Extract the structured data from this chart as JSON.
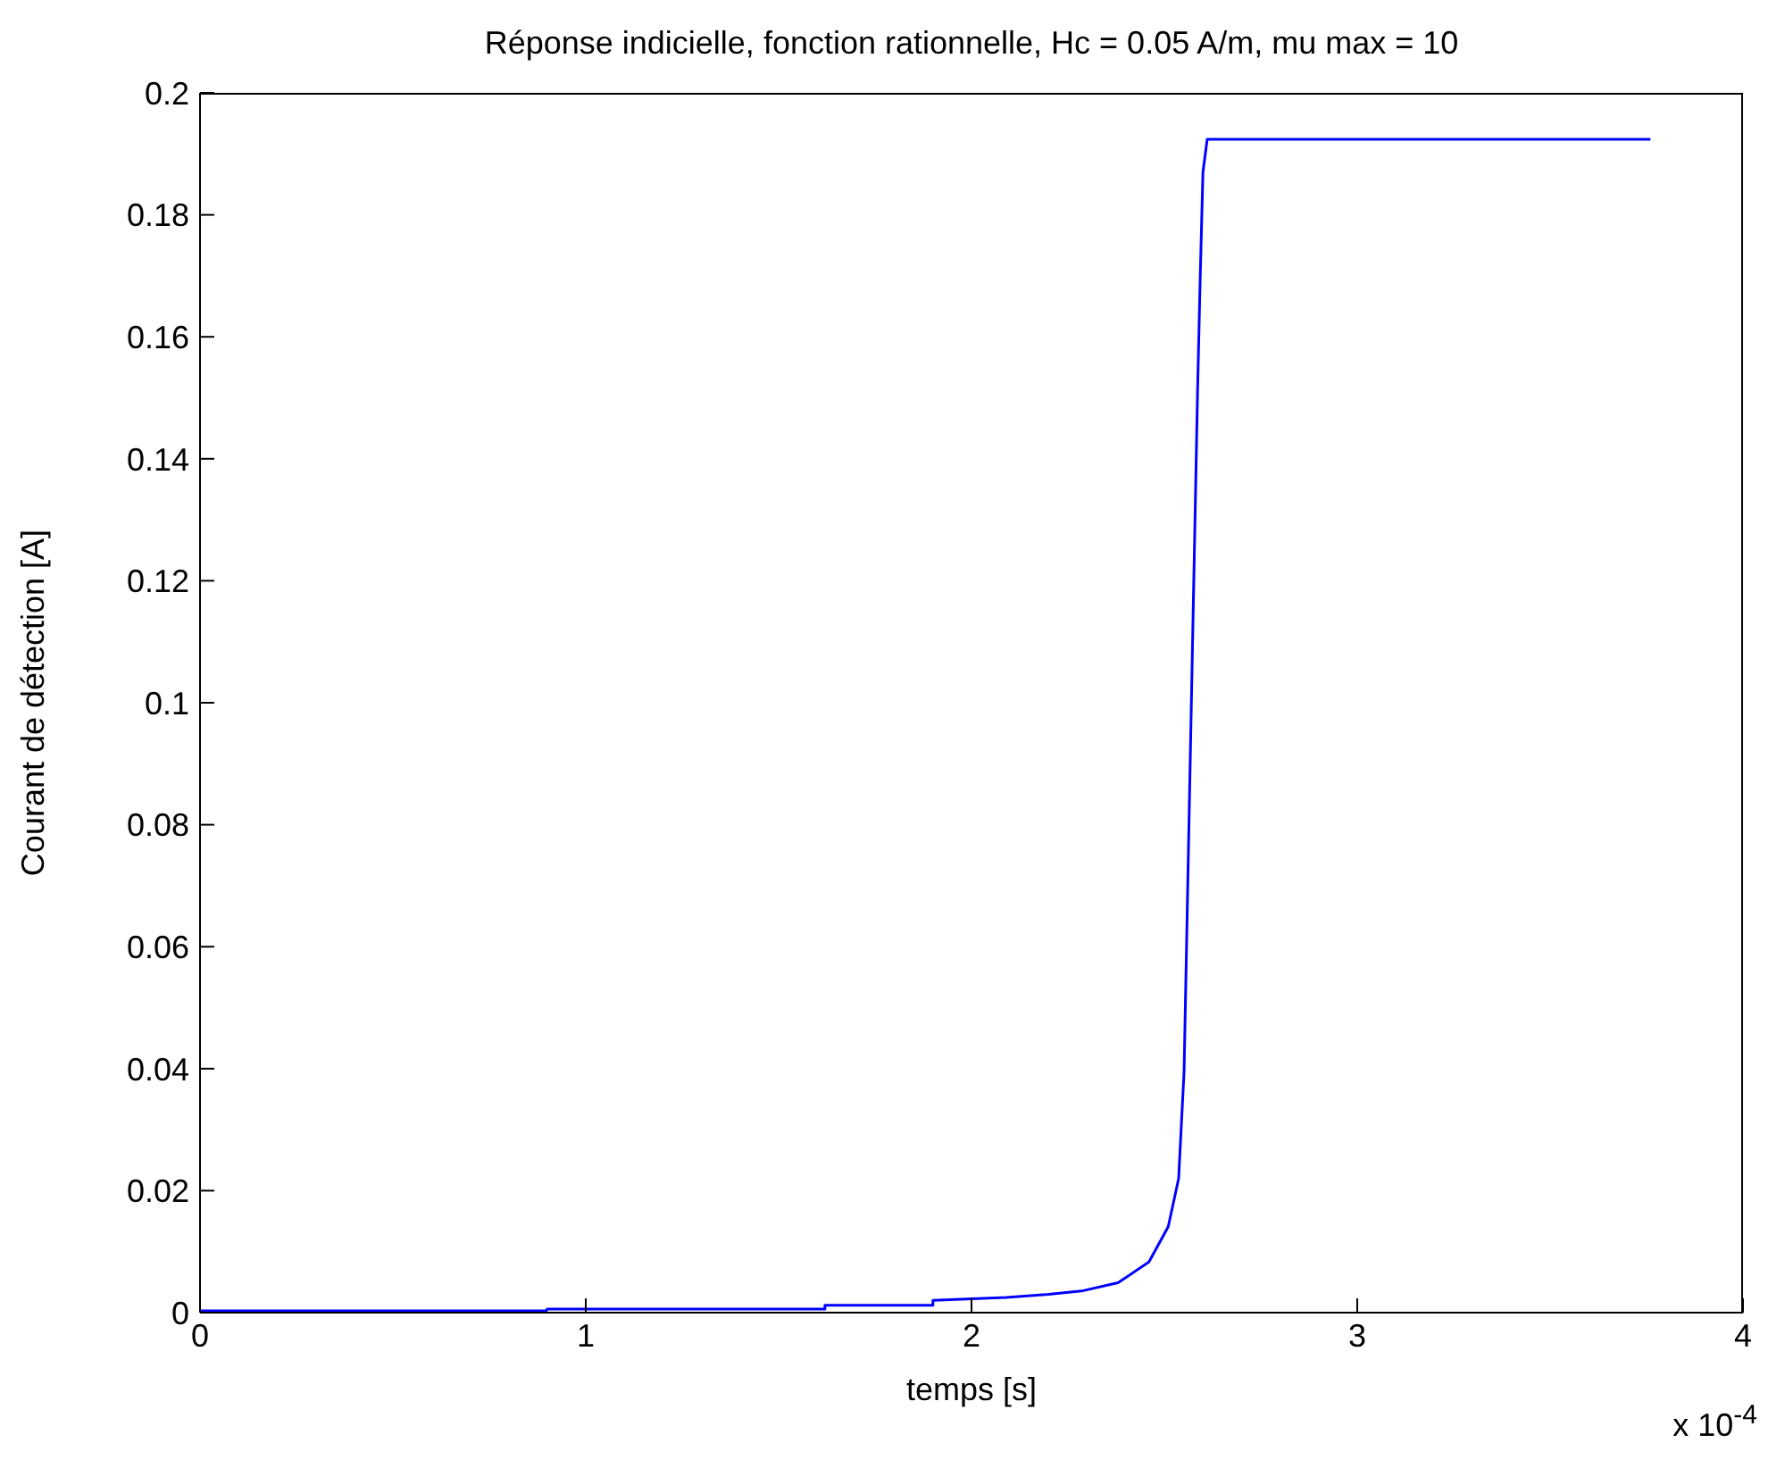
{
  "chart_data": {
    "type": "line",
    "title": "Réponse indicielle, fonction rationnelle, Hc = 0.05 A/m, mu max = 10",
    "xlabel": "temps [s]",
    "ylabel": "Courant de détection [A]",
    "annotations": [
      "x 10$^{-4}$"
    ],
    "series": [
      {
        "color": "#0000ff",
        "x": [
          0,
          0.898,
          0.9,
          1.62,
          1.62,
          1.9,
          1.9,
          2.09,
          2.2,
          2.29,
          2.38,
          2.46,
          2.51,
          2.537,
          2.551,
          2.586,
          2.593,
          2.6,
          2.611,
          3.76
        ],
        "values": [
          0.0003,
          0.0003,
          0.0006,
          0.0006,
          0.0012,
          0.0012,
          0.002,
          0.0025,
          0.003,
          0.0036,
          0.0049,
          0.0083,
          0.0141,
          0.022,
          0.0395,
          0.151,
          0.17,
          0.187,
          0.1924,
          0.1924
        ]
      }
    ],
    "xlim": [
      0,
      4
    ],
    "xticks": [
      0,
      1,
      2,
      3,
      4
    ],
    "ylim": [
      0,
      0.2
    ],
    "yticks": [
      0,
      0.02,
      0.04,
      0.06,
      0.08,
      0.1,
      0.12,
      0.14,
      0.16,
      0.18,
      0.2
    ],
    "grid": false,
    "legend": false,
    "marker": "none",
    "line_style": "solid"
  }
}
